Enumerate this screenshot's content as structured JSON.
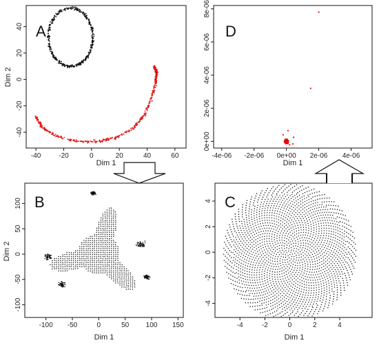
{
  "chart_data": [
    {
      "id": "A",
      "type": "scatter",
      "panel_label": "A",
      "xlabel": "Dim 1",
      "ylabel": "Dim 2",
      "xlim": [
        -47,
        68
      ],
      "ylim": [
        -52,
        56
      ],
      "xticks": [
        -40,
        -20,
        0,
        20,
        40,
        60
      ],
      "yticks": [
        -40,
        -20,
        0,
        20,
        40
      ],
      "colors": {
        "ring": "#111111",
        "arc": "#e01010"
      },
      "series": [
        {
          "shape": "ring",
          "color_key": "ring",
          "cx": -15,
          "cy": 32,
          "rx": 16,
          "ry": 22,
          "n": 420
        },
        {
          "shape": "arc",
          "color_key": "arc",
          "path": [
            [
              -40,
              -28
            ],
            [
              -35,
              -37
            ],
            [
              -25,
              -43
            ],
            [
              -10,
              -47
            ],
            [
              5,
              -47
            ],
            [
              18,
              -44
            ],
            [
              30,
              -37
            ],
            [
              38,
              -27
            ],
            [
              43,
              -15
            ],
            [
              46,
              -3
            ],
            [
              47,
              5
            ],
            [
              45,
              10
            ]
          ],
          "n": 440
        }
      ]
    },
    {
      "id": "D",
      "type": "scatter",
      "panel_label": "D",
      "xlabel": "Dim 1",
      "ylabel": "",
      "xlim": [
        -4.5e-06,
        5.3e-06
      ],
      "ylim": [
        -4e-07,
        8.2e-06
      ],
      "xticks": [
        -4e-06,
        -2e-06,
        0,
        2e-06,
        4e-06
      ],
      "xtick_labels": [
        "-4e-06",
        "-2e-06",
        "0e+00",
        "2e-06",
        "4e-06"
      ],
      "yticks": [
        0,
        2e-06,
        4e-06,
        6e-06,
        8e-06
      ],
      "ytick_labels": [
        "0e+00",
        "2e-06",
        "4e-06",
        "6e-06",
        "8e-06"
      ],
      "colors": {
        "cluster": "#e01010",
        "outlier": "#e01010"
      },
      "series": [
        {
          "shape": "cluster",
          "color_key": "cluster",
          "cx": 0,
          "cy": 0,
          "spread": 1.6e-07,
          "n": 350
        },
        {
          "shape": "points",
          "color_key": "outlier",
          "x": [
            2e-06,
            1.5e-06,
            4.5e-07,
            1e-07,
            4e-07,
            -2e-07,
            2e-07
          ],
          "y": [
            7.8e-06,
            3.2e-06,
            2.5e-07,
            6.5e-07,
            -1.5e-07,
            4e-07,
            -2e-07
          ]
        }
      ]
    },
    {
      "id": "B",
      "type": "scatter",
      "panel_label": "B",
      "xlabel": "Dim 1",
      "ylabel": "Dim 2",
      "xlim": [
        -140,
        160
      ],
      "ylim": [
        -125,
        140
      ],
      "xticks": [
        -100,
        -50,
        0,
        50,
        100,
        150
      ],
      "yticks": [
        -100,
        -50,
        0,
        50,
        100
      ],
      "colors": {
        "points": "#111111"
      },
      "series": [
        {
          "shape": "flower",
          "color_key": "points",
          "cx": 0,
          "cy": 0,
          "base": 40,
          "amp": 55,
          "petals": 6,
          "phase": 1.3
        }
      ]
    },
    {
      "id": "C",
      "type": "scatter",
      "panel_label": "C",
      "xlabel": "Dim 1",
      "ylabel": "",
      "xlim": [
        -6,
        6.6
      ],
      "ylim": [
        -5.1,
        5.4
      ],
      "xticks": [
        -4,
        -2,
        0,
        2,
        4
      ],
      "yticks": [
        -4,
        -2,
        0,
        2,
        4
      ],
      "colors": {
        "points": "#111111"
      },
      "series": [
        {
          "shape": "swirl-disk",
          "color_key": "points",
          "cx": 0,
          "cy": 0,
          "r": 4.6
        }
      ]
    }
  ],
  "arrows": {
    "color": "#111111"
  }
}
